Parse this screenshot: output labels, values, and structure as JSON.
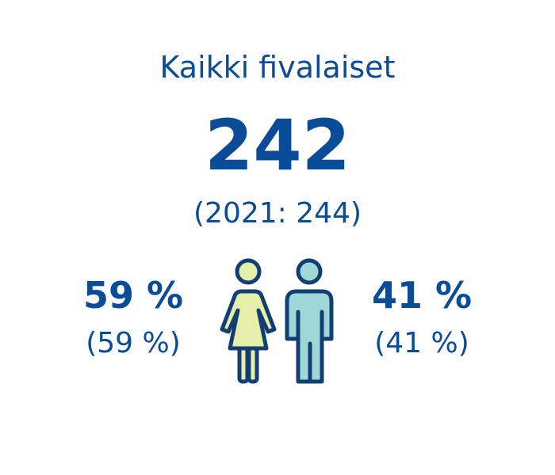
{
  "title": "Kaikki fivalaiset",
  "total": "242",
  "previous_total": "(2021: 244)",
  "women": {
    "share": "59 %",
    "previous_share": "(59 %)"
  },
  "men": {
    "share": "41 %",
    "previous_share": "(41 %)"
  }
}
